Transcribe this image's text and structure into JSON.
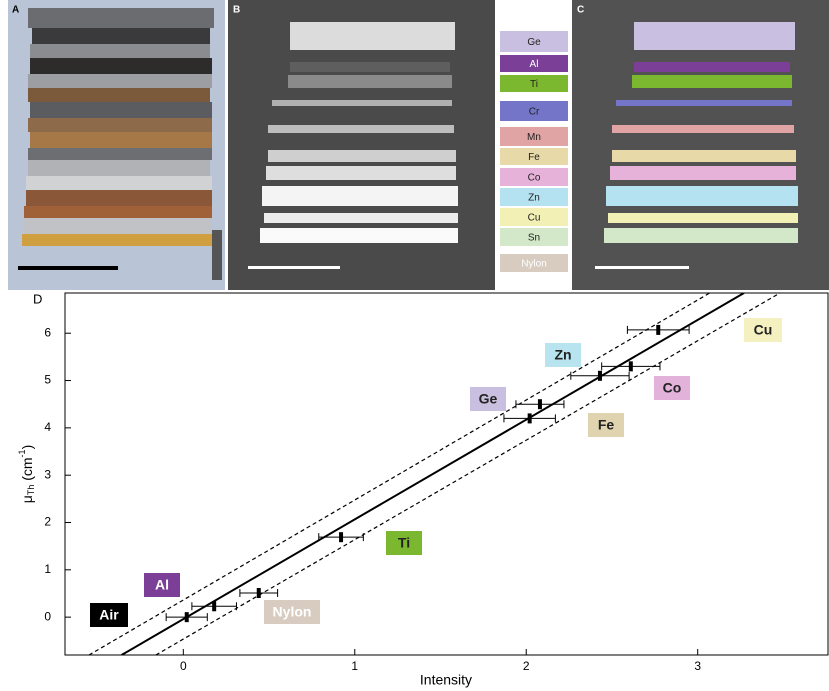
{
  "panel_labels": [
    "A",
    "B",
    "C",
    "D"
  ],
  "legend": [
    {
      "text": "Ge",
      "color": "#c9bfe0",
      "text_color": "#222"
    },
    {
      "text": "Al",
      "color": "#7b3f98",
      "text_color": "#fff"
    },
    {
      "text": "Ti",
      "color": "#7cb82f",
      "text_color": "#222"
    },
    {
      "text": "Cr",
      "color": "#7474c8",
      "text_color": "#222"
    },
    {
      "text": "Mn",
      "color": "#e0a4a4",
      "text_color": "#222"
    },
    {
      "text": "Fe",
      "color": "#e8d9a8",
      "text_color": "#222"
    },
    {
      "text": "Co",
      "color": "#e6b2da",
      "text_color": "#222"
    },
    {
      "text": "Zn",
      "color": "#b4e2f0",
      "text_color": "#222"
    },
    {
      "text": "Cu",
      "color": "#f2f0b4",
      "text_color": "#222"
    },
    {
      "text": "Sn",
      "color": "#d2e8c8",
      "text_color": "#222"
    },
    {
      "text": "Nylon",
      "color": "#d8ccc0",
      "text_color": "#fff"
    }
  ],
  "chart_data": {
    "type": "scatter",
    "xlabel": "Intensity",
    "ylabel": [
      "μ",
      "Th",
      " (cm",
      "-1",
      ")"
    ],
    "xlim": [
      -0.69,
      3.76
    ],
    "ylim": [
      -0.8,
      6.85
    ],
    "xticks": [
      0,
      1,
      2,
      3
    ],
    "yticks": [
      0,
      1,
      2,
      3,
      4,
      5,
      6
    ],
    "series": [
      {
        "color": "#000",
        "x": [
          0.02,
          0.18,
          0.44,
          0.92,
          2.02,
          2.08,
          2.43,
          2.61,
          2.77
        ],
        "values": [
          0.0,
          0.23,
          0.51,
          1.69,
          4.2,
          4.5,
          5.1,
          5.3,
          6.07
        ],
        "xerr": [
          0.12,
          0.13,
          0.11,
          0.13,
          0.15,
          0.14,
          0.17,
          0.17,
          0.18
        ]
      }
    ],
    "lines": [
      {
        "style": "solid",
        "color": "#000",
        "x": [
          -0.36,
          3.27
        ],
        "values": [
          -0.8,
          6.85
        ]
      },
      {
        "style": "dashed",
        "color": "#000",
        "x": [
          -0.55,
          3.07
        ],
        "values": [
          -0.8,
          6.85
        ]
      },
      {
        "style": "dashed",
        "color": "#000",
        "x": [
          -0.16,
          3.48
        ],
        "values": [
          -0.8,
          6.85
        ]
      }
    ],
    "annotations": [
      {
        "text": "Air",
        "color": "#000000",
        "text_color": "#fff"
      },
      {
        "text": "Al",
        "color": "#7b3f98",
        "text_color": "#fff"
      },
      {
        "text": "Nylon",
        "color": "#d8ccc0",
        "text_color": "#fff"
      },
      {
        "text": "Ti",
        "color": "#7cb82f",
        "text_color": "#222"
      },
      {
        "text": "Ge",
        "color": "#c9bfe0",
        "text_color": "#222"
      },
      {
        "text": "Zn",
        "color": "#b8e4f0",
        "text_color": "#222"
      },
      {
        "text": "Fe",
        "color": "#e0d4b0",
        "text_color": "#222"
      },
      {
        "text": "Co",
        "color": "#e2b2da",
        "text_color": "#222"
      },
      {
        "text": "Cu",
        "color": "#f4f0c0",
        "text_color": "#222"
      }
    ]
  }
}
